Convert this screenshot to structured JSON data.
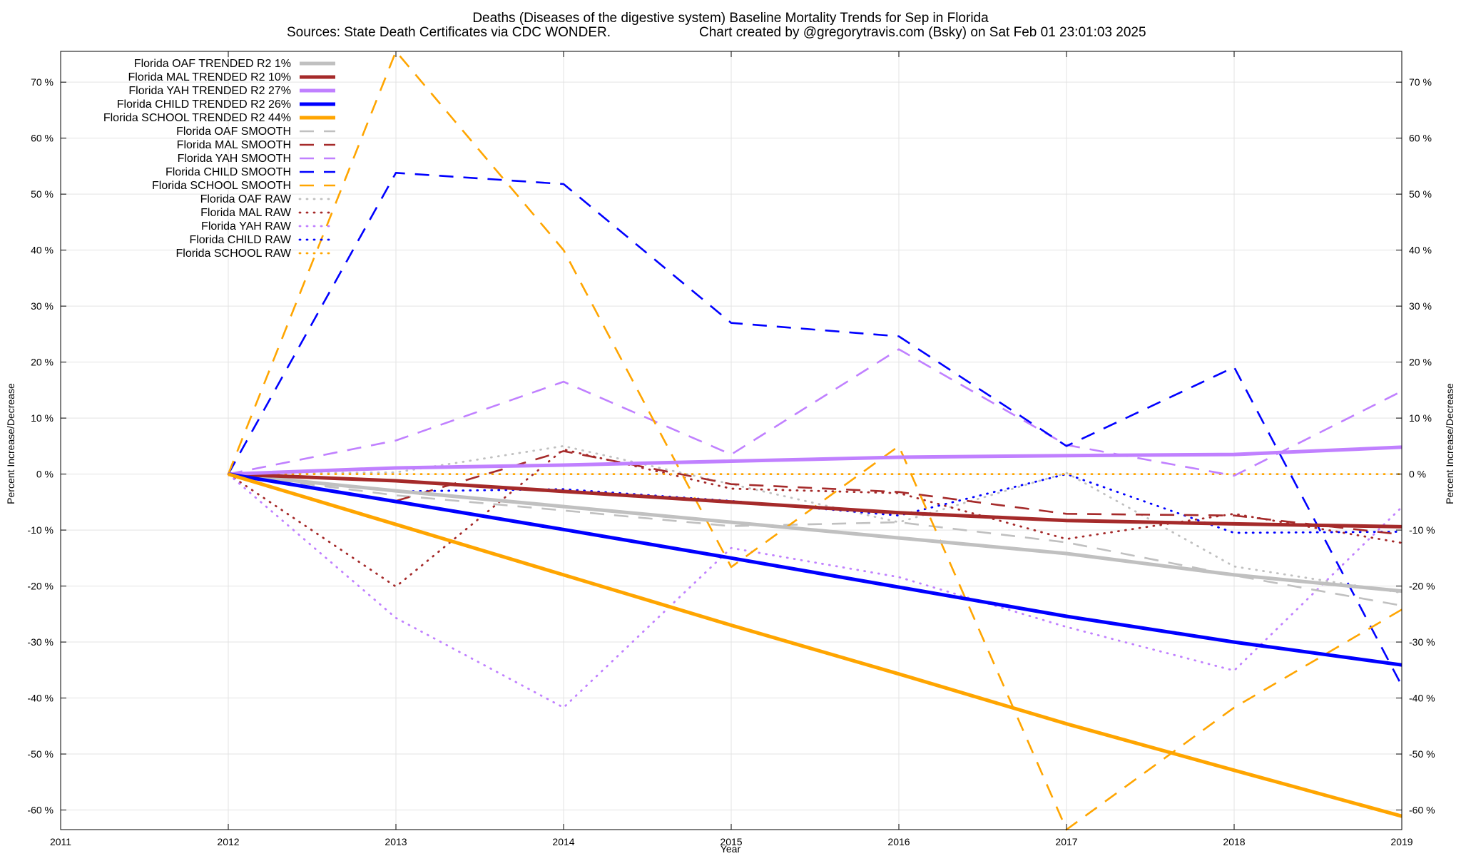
{
  "chart_data": {
    "type": "line",
    "title": "Deaths (Diseases of the digestive system)  Baseline Mortality Trends for Sep in Florida",
    "subtitle_left": "Sources: State Death Certificates via CDC WONDER.",
    "subtitle_right": "Chart created by @gregorytravis.com (Bsky) on Sat Feb 01 23:01:03 2025",
    "xlabel": "Year",
    "ylabel": "Percent Increase/Decrease",
    "y2label": "Percent Increase/Decrease",
    "xlim": [
      2011,
      2019
    ],
    "ylim": [
      -63.5,
      75.5
    ],
    "x_ticks": [
      "2011",
      "2012",
      "2013",
      "2014",
      "2015",
      "2016",
      "2017",
      "2018",
      "2019"
    ],
    "y_ticks": [
      "70 %",
      "60 %",
      "50 %",
      "40 %",
      "30 %",
      "20 %",
      "10 %",
      "0 %",
      "-10 %",
      "-20 %",
      "-30 %",
      "-40 %",
      "-50 %",
      "-60 %"
    ],
    "y_tick_values": [
      70,
      60,
      50,
      40,
      30,
      20,
      10,
      0,
      -10,
      -20,
      -30,
      -40,
      -50,
      -60
    ],
    "grid": true,
    "legend_position": "top-left",
    "series": [
      {
        "name": "Florida OAF TRENDED R2  1%",
        "color": "#c0c0c0",
        "style": "solid",
        "x": [
          2012,
          2013,
          2014,
          2015,
          2016,
          2017,
          2018,
          2019
        ],
        "y": [
          0,
          -3,
          -5.8,
          -8.6,
          -11.4,
          -14.2,
          -18.0,
          -20.9
        ]
      },
      {
        "name": "Florida MAL TRENDED R2  10%",
        "color": "#a52a2a",
        "style": "solid",
        "x": [
          2012,
          2013,
          2014,
          2015,
          2016,
          2017,
          2018,
          2019
        ],
        "y": [
          0,
          -1.2,
          -3.1,
          -5.0,
          -6.9,
          -8.3,
          -8.9,
          -9.4
        ]
      },
      {
        "name": "Florida YAH TRENDED R2  27%",
        "color": "#c080ff",
        "style": "solid",
        "x": [
          2012,
          2013,
          2014,
          2015,
          2016,
          2017,
          2018,
          2019
        ],
        "y": [
          0,
          1.1,
          1.6,
          2.3,
          3.0,
          3.3,
          3.5,
          4.8
        ]
      },
      {
        "name": "Florida CHILD TRENDED R2  26%",
        "color": "#0000ff",
        "style": "solid",
        "x": [
          2012,
          2013,
          2014,
          2015,
          2016,
          2017,
          2018,
          2019
        ],
        "y": [
          0,
          -4.9,
          -9.9,
          -15.0,
          -20.2,
          -25.4,
          -30.0,
          -34.1
        ]
      },
      {
        "name": "Florida SCHOOL TRENDED R2  44%",
        "color": "#ffa500",
        "style": "solid",
        "x": [
          2012,
          2013,
          2014,
          2015,
          2016,
          2017,
          2018,
          2019
        ],
        "y": [
          0,
          -9.0,
          -18.0,
          -27.0,
          -35.7,
          -44.6,
          -52.9,
          -61.1
        ]
      },
      {
        "name": "Florida OAF SMOOTH",
        "color": "#c0c0c0",
        "style": "dashed",
        "x": [
          2012,
          2013,
          2014,
          2015,
          2016,
          2017,
          2018,
          2019
        ],
        "y": [
          0,
          -3.8,
          -6.5,
          -9.3,
          -8.6,
          -12.2,
          -18.1,
          -23.5
        ]
      },
      {
        "name": "Florida MAL SMOOTH",
        "color": "#a52a2a",
        "style": "dashed",
        "x": [
          2012,
          2013,
          2014,
          2015,
          2016,
          2017,
          2018,
          2019
        ],
        "y": [
          0,
          -4.8,
          4.1,
          -1.8,
          -3.2,
          -7.1,
          -7.4,
          -10.8
        ]
      },
      {
        "name": "Florida YAH SMOOTH",
        "color": "#c080ff",
        "style": "dashed",
        "x": [
          2012,
          2013,
          2014,
          2015,
          2016,
          2017,
          2018,
          2019
        ],
        "y": [
          0,
          6.0,
          16.5,
          3.5,
          22.3,
          5.2,
          -0.3,
          14.8
        ]
      },
      {
        "name": "Florida CHILD SMOOTH",
        "color": "#0000ff",
        "style": "dashed",
        "x": [
          2012,
          2013,
          2014,
          2015,
          2016,
          2017,
          2018,
          2019
        ],
        "y": [
          0,
          53.8,
          51.8,
          27.0,
          24.6,
          5.0,
          19.1,
          -37.8
        ]
      },
      {
        "name": "Florida SCHOOL SMOOTH",
        "color": "#ffa500",
        "style": "dashed",
        "x": [
          2012,
          2013,
          2014,
          2015,
          2016,
          2017,
          2018,
          2019
        ],
        "y": [
          0,
          75.5,
          40.0,
          -16.6,
          5.0,
          -63.5,
          -41.7,
          -24.2
        ]
      },
      {
        "name": "Florida OAF RAW",
        "color": "#c0c0c0",
        "style": "dotted",
        "x": [
          2012,
          2013,
          2014,
          2015,
          2016,
          2017,
          2018,
          2019
        ],
        "y": [
          0,
          0.3,
          5.0,
          -1.8,
          -8.6,
          0.2,
          -16.5,
          -21.2
        ]
      },
      {
        "name": "Florida MAL RAW",
        "color": "#a52a2a",
        "style": "dotted",
        "x": [
          2012,
          2013,
          2014,
          2015,
          2016,
          2017,
          2018,
          2019
        ],
        "y": [
          0,
          -20.1,
          4.4,
          -2.6,
          -3.4,
          -11.6,
          -7.1,
          -12.3
        ]
      },
      {
        "name": "Florida YAH RAW",
        "color": "#c080ff",
        "style": "dotted",
        "x": [
          2012,
          2013,
          2014,
          2015,
          2016,
          2017,
          2018,
          2019
        ],
        "y": [
          0,
          -25.7,
          -41.7,
          -13.2,
          -18.4,
          -27.3,
          -35.1,
          -5.9
        ]
      },
      {
        "name": "Florida CHILD RAW",
        "color": "#0000ff",
        "style": "dotted",
        "x": [
          2012,
          2013,
          2014,
          2015,
          2016,
          2017,
          2018,
          2019
        ],
        "y": [
          0,
          -3.1,
          -2.7,
          -4.8,
          -7.4,
          0.0,
          -10.5,
          -10.3
        ]
      },
      {
        "name": "Florida SCHOOL RAW",
        "color": "#ffa500",
        "style": "dotted",
        "x": [
          2012,
          2013,
          2014,
          2015,
          2016,
          2017,
          2018,
          2019
        ],
        "y": [
          0,
          0,
          0,
          0,
          0,
          0,
          0,
          0
        ]
      }
    ]
  }
}
